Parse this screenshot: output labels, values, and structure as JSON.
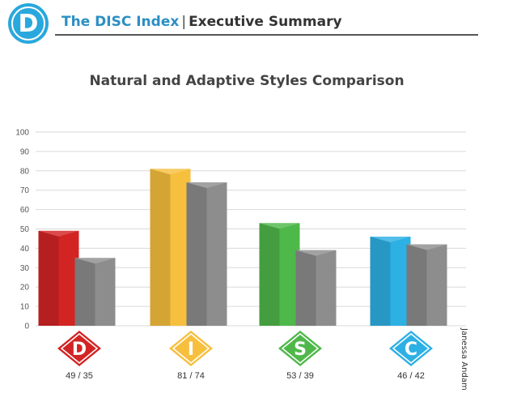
{
  "header": {
    "logo_letter": "D",
    "brand": "The DISC Index",
    "separator": "|",
    "subtitle": "Executive Summary"
  },
  "side_label": "Janessa Andam",
  "chart_data": {
    "type": "bar",
    "title": "Natural and Adaptive Styles Comparison",
    "categories": [
      "D",
      "I",
      "S",
      "C"
    ],
    "category_labels": [
      "49 / 35",
      "81 / 74",
      "53 / 39",
      "46 / 42"
    ],
    "series": [
      {
        "values": [
          49,
          81,
          53,
          46
        ]
      },
      {
        "values": [
          35,
          74,
          39,
          42
        ]
      }
    ],
    "ylim": [
      0,
      100
    ],
    "yticks": [
      0,
      10,
      20,
      30,
      40,
      50,
      60,
      70,
      80,
      90,
      100
    ],
    "grid": true,
    "colors": {
      "natural": [
        "#d32424",
        "#f7bf3e",
        "#4fb84a",
        "#2db0e4"
      ],
      "adaptive": "#8d8d8d",
      "gridline": "#d9d9d9",
      "tick_text": "#555555"
    }
  }
}
